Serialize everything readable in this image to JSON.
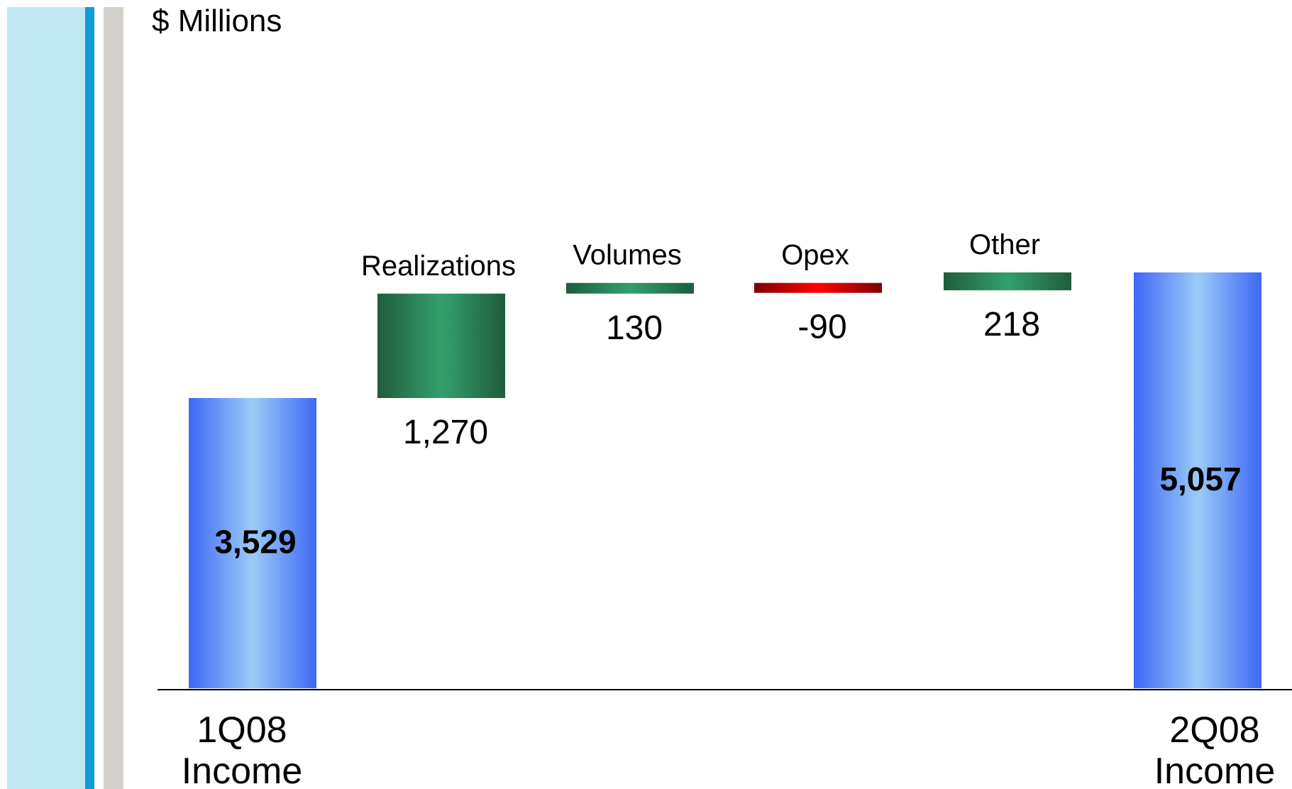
{
  "colors": {
    "left_panel": "#bfe6f1",
    "left_stripe": "#0f9bd6",
    "gray_stripe": "#d3d0cb",
    "total_bar_edge": "#3d68f5",
    "total_bar_center": "#9ccbf7",
    "increase_edge": "#1f5c3d",
    "increase_center": "#34a06e",
    "decrease_edge": "#7d0000",
    "decrease_center": "#ff0000",
    "axis": "#000000",
    "text": "#000000"
  },
  "chart_data": {
    "type": "waterfall",
    "unit_label": "$ Millions",
    "steps": [
      {
        "kind": "total",
        "label_lines": [
          "1Q08",
          "Income"
        ],
        "value": 3529,
        "value_label": "3,529"
      },
      {
        "kind": "delta",
        "label": "Realizations",
        "value": 1270,
        "value_label": "1,270"
      },
      {
        "kind": "delta",
        "label": "Volumes",
        "value": 130,
        "value_label": "130"
      },
      {
        "kind": "delta",
        "label": "Opex",
        "value": -90,
        "value_label": "-90"
      },
      {
        "kind": "delta",
        "label": "Other",
        "value": 218,
        "value_label": "218"
      },
      {
        "kind": "total",
        "label_lines": [
          "2Q08",
          "Income"
        ],
        "value": 5057,
        "value_label": "5,057"
      }
    ],
    "ylim": [
      0,
      5057
    ]
  }
}
